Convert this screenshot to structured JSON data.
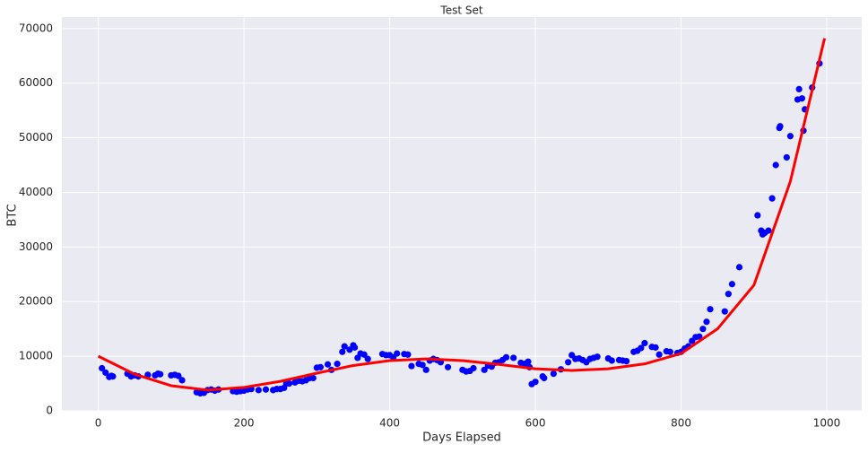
{
  "chart_data": {
    "type": "scatter",
    "title": "Test Set",
    "xlabel": "Days Elapsed",
    "ylabel": "BTC",
    "xlim": [
      -50,
      1048
    ],
    "ylim": [
      0,
      72100
    ],
    "xticks": [
      0,
      200,
      400,
      600,
      800,
      1000
    ],
    "yticks": [
      0,
      10000,
      20000,
      30000,
      40000,
      50000,
      60000,
      70000
    ],
    "grid": true,
    "series": [
      {
        "type": "scatter",
        "color": "#0000ff",
        "x": [
          5,
          10,
          15,
          18,
          20,
          40,
          45,
          50,
          55,
          68,
          78,
          82,
          85,
          100,
          105,
          110,
          115,
          135,
          140,
          145,
          150,
          155,
          160,
          165,
          185,
          190,
          195,
          200,
          205,
          210,
          220,
          230,
          240,
          245,
          250,
          255,
          258,
          262,
          270,
          275,
          280,
          285,
          290,
          295,
          300,
          305,
          315,
          320,
          328,
          335,
          338,
          345,
          350,
          352,
          356,
          360,
          365,
          370,
          390,
          395,
          400,
          405,
          410,
          420,
          425,
          430,
          440,
          445,
          450,
          455,
          460,
          465,
          470,
          480,
          500,
          505,
          510,
          515,
          530,
          535,
          540,
          545,
          550,
          555,
          560,
          570,
          580,
          585,
          590,
          592,
          595,
          600,
          610,
          612,
          625,
          635,
          645,
          650,
          655,
          660,
          665,
          670,
          675,
          680,
          685,
          700,
          705,
          715,
          720,
          725,
          735,
          740,
          745,
          750,
          760,
          765,
          770,
          780,
          785,
          795,
          800,
          805,
          810,
          815,
          820,
          825,
          830,
          835,
          840,
          860,
          865,
          870,
          880,
          905,
          910,
          912,
          915,
          920,
          925,
          930,
          935,
          936,
          945,
          950,
          960,
          962,
          966,
          968,
          970,
          980,
          990
        ],
        "values": [
          7800,
          7000,
          6200,
          6400,
          6300,
          6800,
          6300,
          6500,
          6300,
          6600,
          6500,
          6800,
          6700,
          6500,
          6600,
          6400,
          5600,
          3400,
          3200,
          3300,
          3800,
          3900,
          3700,
          3900,
          3600,
          3500,
          3600,
          3700,
          3900,
          4000,
          3800,
          3900,
          3800,
          4000,
          4000,
          4200,
          5000,
          5000,
          5200,
          5500,
          5400,
          5600,
          6000,
          6000,
          7900,
          8000,
          8500,
          7500,
          8600,
          10800,
          11800,
          11200,
          12000,
          11600,
          9700,
          10500,
          10300,
          9500,
          10400,
          10200,
          10200,
          9800,
          10500,
          10400,
          10300,
          8200,
          8600,
          8400,
          7500,
          9200,
          9500,
          9300,
          8900,
          8000,
          7500,
          7200,
          7300,
          7800,
          7500,
          8300,
          8100,
          8800,
          8900,
          9300,
          9800,
          9700,
          8800,
          8600,
          9000,
          8000,
          4900,
          5300,
          6300,
          6000,
          6800,
          7600,
          8900,
          10200,
          9500,
          9600,
          9300,
          8900,
          9500,
          9700,
          9900,
          9600,
          9200,
          9300,
          9200,
          9100,
          10800,
          11000,
          11500,
          12400,
          11700,
          11600,
          10300,
          10900,
          10800,
          10600,
          10800,
          11400,
          11800,
          12800,
          13500,
          13600,
          15000,
          16300,
          18600,
          18200,
          21400,
          23200,
          26300,
          35800,
          33000,
          32300,
          32600,
          33000,
          38900,
          45000,
          51800,
          52100,
          46400,
          50300,
          57000,
          58900,
          57200,
          51300,
          55200,
          59200,
          63600
        ]
      },
      {
        "type": "line",
        "color": "#ff0000",
        "x": [
          0,
          50,
          100,
          150,
          200,
          250,
          300,
          350,
          400,
          450,
          500,
          550,
          600,
          650,
          700,
          750,
          800,
          850,
          900,
          950,
          997
        ],
        "values": [
          10000,
          6700,
          4600,
          3800,
          4300,
          5400,
          6900,
          8300,
          9200,
          9500,
          9200,
          8500,
          7700,
          7400,
          7700,
          8600,
          10500,
          15000,
          23000,
          42000,
          68200
        ]
      }
    ]
  }
}
